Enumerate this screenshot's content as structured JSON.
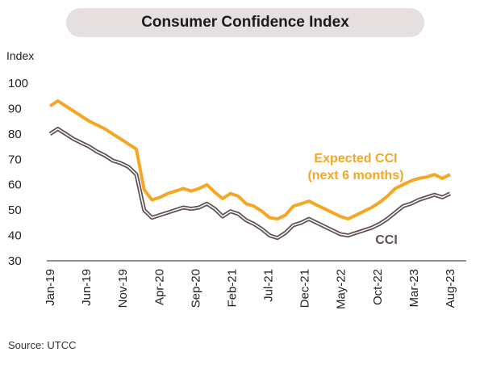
{
  "chart_data": {
    "type": "line",
    "title": "Consumer Confidence Index",
    "ylabel": "Index",
    "ylim": [
      30,
      100
    ],
    "yticks": [
      "100",
      "90",
      "80",
      "70",
      "60",
      "50",
      "40",
      "30"
    ],
    "xticks": [
      "Jan-19",
      "Jun-19",
      "Nov-19",
      "Apr-20",
      "Sep-20",
      "Feb-21",
      "Jul-21",
      "Dec-21",
      "May-22",
      "Oct-22",
      "Mar-23",
      "Aug-23"
    ],
    "series": [
      {
        "name": "Expected CCI (next 6 months)",
        "label_line1": "Expected CCI",
        "label_line2": "(next 6 months)",
        "color": "#f5a623",
        "values": [
          91,
          93,
          91,
          89,
          87,
          85,
          83.5,
          82,
          80,
          78,
          76,
          74,
          58,
          54,
          55,
          56.5,
          57.5,
          58.5,
          57.5,
          58.5,
          60,
          57,
          54.5,
          56.5,
          55.5,
          52.5,
          51.5,
          49.5,
          47,
          46.5,
          48,
          51.5,
          52.5,
          53.5,
          52,
          50.5,
          49,
          47.5,
          46.5,
          48,
          49.5,
          51,
          53,
          55.5,
          58.5,
          60,
          61.5,
          62.5,
          63,
          64,
          62.5,
          64
        ]
      },
      {
        "name": "CCI",
        "label_line1": "CCI",
        "color": "#5e5253",
        "values": [
          80,
          82,
          80,
          78,
          76.5,
          75,
          73,
          71.5,
          69.5,
          68.5,
          67,
          64,
          50,
          47,
          48,
          49,
          50,
          51,
          50.5,
          51,
          52.5,
          50.5,
          47.5,
          49.5,
          48.5,
          46,
          44.5,
          42.5,
          40,
          39,
          41,
          44,
          45,
          46.5,
          45,
          43.5,
          42,
          40.5,
          40,
          41,
          42,
          43,
          44.5,
          46.5,
          49,
          51.5,
          52.5,
          54,
          55,
          56,
          55,
          56.5
        ]
      }
    ]
  },
  "source": "Source: UTCC"
}
